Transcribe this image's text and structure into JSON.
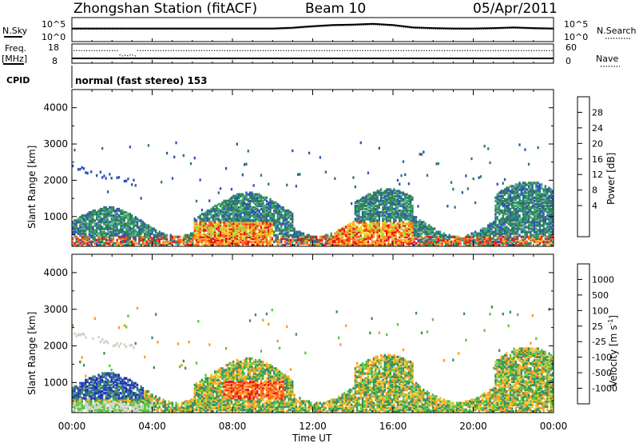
{
  "header": {
    "station": "Zhongshan Station (fitACF)",
    "beam": "Beam 10",
    "date": "05/Apr/2011"
  },
  "colors": {
    "power": [
      "#1a1aff",
      "#2d55b4",
      "#2e7f5b",
      "#3aa86a",
      "#9ed23c",
      "#f2d21e",
      "#ff9a1e",
      "#ff5a14",
      "#e61414"
    ],
    "velocity": [
      "#e61414",
      "#ff5a14",
      "#ff9a1e",
      "#f2c21e",
      "#cfcfc4",
      "#55c83c",
      "#3a8f5a",
      "#2e55b0",
      "#1f2fb4"
    ]
  },
  "chart_data": [
    {
      "type": "line",
      "panel": "N.Sky / N.Search",
      "left_label": "N.Sky",
      "right_label": "N.Search",
      "left_ticks": [
        "10^5",
        "10^0"
      ],
      "right_ticks": [
        "10^5",
        "10^0"
      ],
      "series": [
        {
          "x_hours": [
            0,
            1,
            2,
            3,
            4,
            5,
            6,
            7,
            8,
            9,
            10,
            11,
            12,
            13,
            14,
            15,
            16,
            17,
            18,
            19,
            20,
            21,
            22,
            23,
            24
          ],
          "log10_values": [
            3.0,
            3.0,
            3.0,
            3.0,
            3.0,
            3.0,
            3.0,
            3.0,
            3.0,
            3.0,
            3.0,
            3.2,
            3.6,
            3.9,
            4.0,
            4.2,
            3.9,
            3.3,
            3.1,
            3.0,
            3.0,
            3.1,
            3.3,
            3.1,
            3.0
          ]
        }
      ]
    },
    {
      "type": "scatter",
      "panel": "Freq. / Nave",
      "left_label": "Freq.",
      "left_unit": "[MHz]",
      "right_label": "Nave",
      "left_ticks": [
        "18",
        "8"
      ],
      "right_ticks": [
        "60",
        "0"
      ],
      "freq_mhz": 10.0,
      "nave_typical": 43,
      "nave_dip": {
        "x_hours": [
          2.3,
          3.2
        ],
        "value": 22
      }
    },
    {
      "type": "table",
      "panel": "CPID",
      "label": "CPID",
      "text": "normal (fast stereo) 153"
    },
    {
      "type": "heatmap",
      "panel": "Power",
      "ylabel": "Slant Range [km]",
      "xlabel": "",
      "yticks": [
        "4000",
        "3000",
        "2000",
        "1000"
      ],
      "ylim": [
        180,
        4500
      ],
      "colorbar_title": "Power [dB]",
      "colorbar_ticks": [
        "28",
        "24",
        "20",
        "16",
        "12",
        "8",
        "4"
      ]
    },
    {
      "type": "heatmap",
      "panel": "Velocity",
      "ylabel": "Slant Range [km]",
      "xlabel": "Time UT",
      "yticks": [
        "4000",
        "3000",
        "2000",
        "1000"
      ],
      "xticks": [
        "00:00",
        "04:00",
        "08:00",
        "12:00",
        "16:00",
        "20:00",
        "00:00"
      ],
      "ylim": [
        180,
        4500
      ],
      "colorbar_title": "Velocity [m s",
      "colorbar_title_sup": "-1",
      "colorbar_title_end": "]",
      "colorbar_ticks": [
        "1000",
        "500",
        "100",
        "25",
        "-25",
        "-100",
        "-500",
        "-1000"
      ]
    }
  ]
}
